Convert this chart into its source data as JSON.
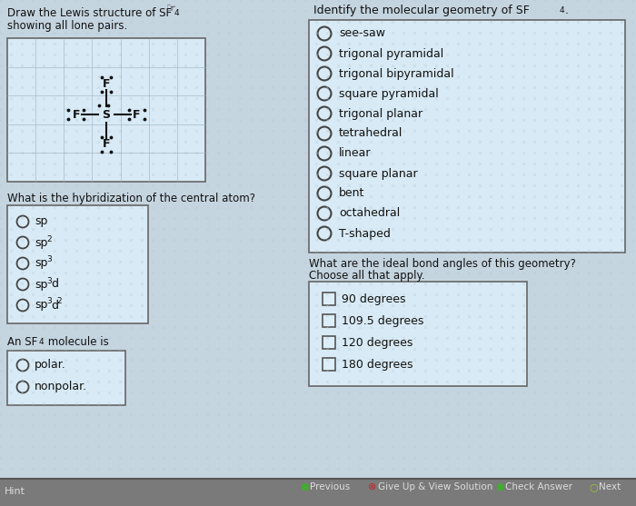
{
  "bg_color": "#c5d5e0",
  "panel_bg": "#cde0ed",
  "box_bg": "#d8eaf5",
  "text_color": "#111111",
  "grid_color": "#9ab0c0",
  "hyb_options_raw": [
    "sp",
    "sp2",
    "sp3",
    "sp3d",
    "sp3d2"
  ],
  "geo_options": [
    "see-saw",
    "trigonal pyramidal",
    "trigonal bipyramidal",
    "square pyramidal",
    "trigonal planar",
    "tetrahedral",
    "linear",
    "square planar",
    "bent",
    "octahedral",
    "T-shaped"
  ],
  "polar_options": [
    "polar.",
    "nonpolar."
  ],
  "bond_angle_options": [
    "90 degrees",
    "109.5 degrees",
    "120 degrees",
    "180 degrees"
  ],
  "bottom_bg": "#7a7a7a",
  "bottom_line": "#555555"
}
